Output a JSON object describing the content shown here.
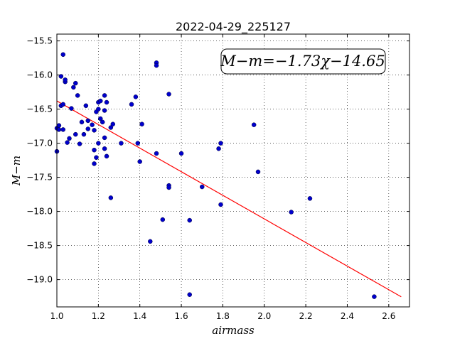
{
  "chart_data": {
    "type": "scatter",
    "title": "2022-04-29_225127",
    "xlabel": "airmass",
    "ylabel": "M−m",
    "xlim": [
      1.0,
      2.7
    ],
    "ylim": [
      -19.4,
      -15.4
    ],
    "xticks": [
      "1.0",
      "1.2",
      "1.4",
      "1.6",
      "1.8",
      "2.0",
      "2.2",
      "2.4",
      "2.6"
    ],
    "yticks": [
      "−15.5",
      "−16.0",
      "−16.5",
      "−17.0",
      "−17.5",
      "−18.0",
      "−18.5",
      "−19.0"
    ],
    "grid": true,
    "annotation": "M−m=−1.73χ−14.65",
    "fit": {
      "slope": -1.73,
      "intercept": -14.65,
      "x_range": [
        1.0,
        2.66
      ],
      "color": "#ff0000"
    },
    "points_color": "#0000cc",
    "points": [
      [
        1.0,
        -16.78
      ],
      [
        1.0,
        -17.12
      ],
      [
        1.01,
        -16.74
      ],
      [
        1.01,
        -16.8
      ],
      [
        1.02,
        -16.02
      ],
      [
        1.02,
        -16.45
      ],
      [
        1.03,
        -16.43
      ],
      [
        1.03,
        -15.7
      ],
      [
        1.03,
        -16.8
      ],
      [
        1.04,
        -16.1
      ],
      [
        1.04,
        -16.07
      ],
      [
        1.05,
        -16.99
      ],
      [
        1.06,
        -16.93
      ],
      [
        1.07,
        -16.49
      ],
      [
        1.08,
        -16.18
      ],
      [
        1.09,
        -16.12
      ],
      [
        1.09,
        -16.87
      ],
      [
        1.1,
        -16.3
      ],
      [
        1.11,
        -17.01
      ],
      [
        1.12,
        -16.69
      ],
      [
        1.13,
        -16.87
      ],
      [
        1.14,
        -16.45
      ],
      [
        1.15,
        -16.67
      ],
      [
        1.15,
        -16.79
      ],
      [
        1.17,
        -16.73
      ],
      [
        1.18,
        -16.81
      ],
      [
        1.18,
        -17.1
      ],
      [
        1.18,
        -17.3
      ],
      [
        1.19,
        -17.21
      ],
      [
        1.19,
        -16.54
      ],
      [
        1.2,
        -16.5
      ],
      [
        1.2,
        -16.4
      ],
      [
        1.2,
        -17.0
      ],
      [
        1.21,
        -16.38
      ],
      [
        1.21,
        -16.64
      ],
      [
        1.22,
        -16.69
      ],
      [
        1.23,
        -16.3
      ],
      [
        1.23,
        -16.52
      ],
      [
        1.23,
        -16.92
      ],
      [
        1.23,
        -17.08
      ],
      [
        1.24,
        -16.4
      ],
      [
        1.24,
        -17.19
      ],
      [
        1.26,
        -16.77
      ],
      [
        1.26,
        -17.8
      ],
      [
        1.27,
        -16.72
      ],
      [
        1.31,
        -17.0
      ],
      [
        1.36,
        -16.43
      ],
      [
        1.38,
        -16.32
      ],
      [
        1.39,
        -17.0
      ],
      [
        1.4,
        -17.27
      ],
      [
        1.41,
        -16.72
      ],
      [
        1.45,
        -18.44
      ],
      [
        1.48,
        -17.15
      ],
      [
        1.48,
        -15.82
      ],
      [
        1.48,
        -15.86
      ],
      [
        1.51,
        -18.12
      ],
      [
        1.54,
        -16.28
      ],
      [
        1.54,
        -17.62
      ],
      [
        1.54,
        -17.65
      ],
      [
        1.6,
        -17.15
      ],
      [
        1.64,
        -18.13
      ],
      [
        1.64,
        -19.22
      ],
      [
        1.7,
        -17.64
      ],
      [
        1.78,
        -17.08
      ],
      [
        1.79,
        -17.0
      ],
      [
        1.79,
        -17.9
      ],
      [
        1.95,
        -16.73
      ],
      [
        1.97,
        -17.42
      ],
      [
        2.13,
        -18.01
      ],
      [
        2.22,
        -17.81
      ],
      [
        2.53,
        -19.25
      ]
    ]
  }
}
